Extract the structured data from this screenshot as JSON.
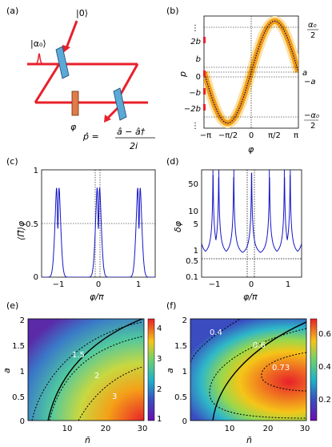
{
  "panels": {
    "a": {
      "label": "(a)",
      "alpha_label": "|α₀⟩",
      "zero_label": "|0⟩",
      "phi_label": "φ",
      "phat_lhs": "p̂ =",
      "phat_num": "â − â†",
      "phat_den": "2i",
      "beam_color": "#e8202a",
      "splitter_color": "#5aa9d6",
      "phase_color": "#e07b4a"
    },
    "b": {
      "label": "(b)",
      "ylabel": "p",
      "xlabel": "φ",
      "yticks": [
        "2b",
        "b",
        "0",
        "−b",
        "−2b"
      ],
      "xticks": [
        "−π",
        "−π/2",
        "0",
        "π/2",
        "π"
      ],
      "right_ticks": {
        "top_num": "α₀",
        "top_den": "2",
        "a": "a",
        "neg_a": "−a",
        "bot_num": "−α₀",
        "bot_den": "2"
      },
      "dots": "⋮"
    },
    "c": {
      "label": "(c)",
      "ylabel": "⟨Π̂⟩φ",
      "xlabel": "φ/π",
      "yticks": [
        "1",
        "0.5",
        "0"
      ],
      "xticks": [
        "−1",
        "0",
        "1"
      ]
    },
    "d": {
      "label": "(d)",
      "ylabel": "δφ",
      "xlabel": "φ/π",
      "yticks": [
        "50",
        "10",
        "5",
        "1",
        "0.5",
        "0.1"
      ],
      "xticks": [
        "−1",
        "0",
        "1"
      ]
    },
    "e": {
      "label": "(e)",
      "ylabel": "a",
      "xlabel": "n̄",
      "yticks": [
        "2",
        "1.5",
        "1",
        "0.5",
        "0"
      ],
      "xticks": [
        "10",
        "20",
        "30"
      ],
      "contour_labels": [
        "1.5",
        "2",
        "3"
      ],
      "colorbar_ticks": [
        "4",
        "3",
        "2",
        "1"
      ]
    },
    "f": {
      "label": "(f)",
      "ylabel": "a",
      "xlabel": "n̄",
      "yticks": [
        "2",
        "1.5",
        "1",
        "0.5",
        "0"
      ],
      "xticks": [
        "10",
        "20",
        "30"
      ],
      "contour_labels": [
        "0.4",
        "0.6",
        "0.73"
      ],
      "colorbar_ticks": [
        "0.6",
        "0.4",
        "0.2"
      ]
    }
  },
  "chart_data": [
    {
      "type": "line",
      "panel": "b",
      "xlim": [
        -3.1416,
        3.1416
      ],
      "ylim": [
        -1.1,
        1.1
      ],
      "function": "sin(phi)",
      "band_color": "#f39c12",
      "line_color": "#000080"
    },
    {
      "type": "line",
      "panel": "c",
      "xlim": [
        -1.4,
        1.4
      ],
      "ylim": [
        0,
        1
      ],
      "peaks_at": [
        -1,
        0,
        1
      ],
      "line_color": "#1515c8",
      "dotted_level": 0.5
    },
    {
      "type": "line",
      "panel": "d",
      "xlim": [
        -1.4,
        1.4
      ],
      "ylim": [
        0.1,
        70
      ],
      "scale": "log",
      "line_color": "#1515c8",
      "dotted_level": 0.35
    },
    {
      "type": "heatmap",
      "panel": "e",
      "xlim": [
        0,
        30
      ],
      "ylim": [
        0,
        2
      ],
      "color_range": [
        1,
        4.6
      ]
    },
    {
      "type": "heatmap",
      "panel": "f",
      "xlim": [
        0,
        30
      ],
      "ylim": [
        0,
        2
      ],
      "color_range": [
        0.1,
        0.75
      ]
    }
  ]
}
